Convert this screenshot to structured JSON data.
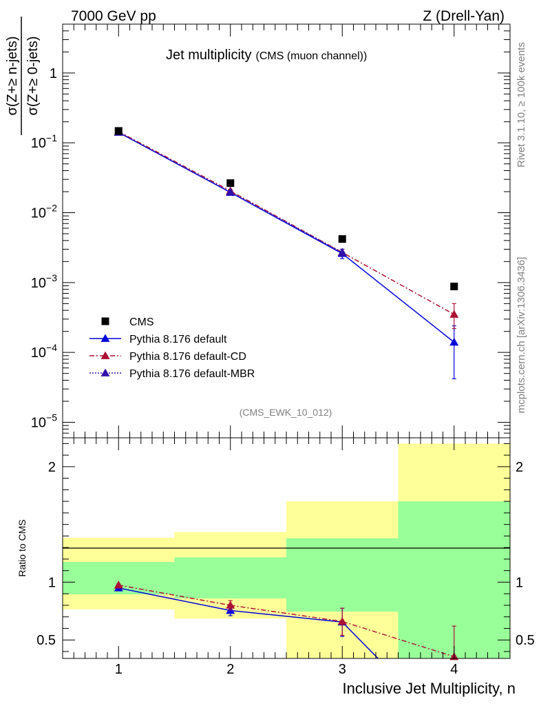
{
  "header": {
    "left": "7000 GeV pp",
    "right": "Z (Drell-Yan)"
  },
  "side_text": {
    "rivet": "Rivet 3.1.10, ≥ 100k events",
    "mcplots": "mcplots.cern.ch [arXiv:1306.3436]"
  },
  "colors": {
    "cms": "#000000",
    "pythia_default": "#0000dd",
    "pythia_cd": "#aa1133",
    "pythia_mbr": "#3311aa",
    "band_outer": "#ffff99",
    "band_inner": "#99ff99"
  },
  "chart_data": [
    {
      "type": "scatter",
      "panel": "main",
      "title": "Jet multiplicity",
      "subtitle": "(CMS (muon channel))",
      "ylabel_num": "σ(Z+≥ n-jets)",
      "ylabel_den": "σ(Z+≥ 0-jets)",
      "watermark": "(CMS_EWK_10_012)",
      "yscale": "log",
      "xlim": [
        0.5,
        4.5
      ],
      "ylim": [
        6e-06,
        5
      ],
      "yticks": [
        {
          "value": 1e-05,
          "base": "10",
          "exp": "−5"
        },
        {
          "value": 0.0001,
          "base": "10",
          "exp": "−4"
        },
        {
          "value": 0.001,
          "base": "10",
          "exp": "−3"
        },
        {
          "value": 0.01,
          "base": "10",
          "exp": "−2"
        },
        {
          "value": 0.1,
          "base": "10",
          "exp": "−1"
        },
        {
          "value": 1,
          "base": "1",
          "exp": ""
        }
      ],
      "legend_position": "lower-left",
      "series": [
        {
          "name": "CMS",
          "style": "data",
          "x": [
            1,
            2,
            3,
            4
          ],
          "y": [
            0.148,
            0.0265,
            0.0042,
            0.00088
          ]
        },
        {
          "name": "Pythia 8.176 default",
          "style": "solid",
          "x": [
            1,
            2,
            3,
            4
          ],
          "y": [
            0.141,
            0.0195,
            0.0026,
            0.00014
          ],
          "err_lo": [
            0.139,
            0.0185,
            0.0022,
            4.2e-05
          ],
          "err_hi": [
            0.143,
            0.0205,
            0.003,
            0.00024
          ]
        },
        {
          "name": "Pythia 8.176 default-CD",
          "style": "dashdot",
          "x": [
            1,
            2,
            3,
            4
          ],
          "y": [
            0.145,
            0.0205,
            0.0027,
            0.00035
          ],
          "err_lo": [
            0.143,
            0.0195,
            0.0024,
            0.00022
          ],
          "err_hi": [
            0.147,
            0.0215,
            0.003,
            0.0005
          ]
        },
        {
          "name": "Pythia 8.176 default-MBR",
          "style": "dotted",
          "x": [
            1,
            2,
            3
          ],
          "y": [
            0.142,
            0.0198,
            0.0027
          ],
          "err_lo": [
            0.14,
            0.0188,
            0.0024
          ],
          "err_hi": [
            0.144,
            0.0208,
            0.003
          ]
        }
      ]
    },
    {
      "type": "line",
      "panel": "ratio",
      "ylabel": "Ratio to CMS",
      "xlabel": "Inclusive Jet Multiplicity, n",
      "xlim": [
        0.5,
        4.5
      ],
      "ylim": [
        0.34,
        2.25
      ],
      "xticks": [
        1,
        2,
        3,
        4
      ],
      "yticks": [
        0.5,
        1,
        2
      ],
      "bands": [
        {
          "x0": 0.5,
          "x1": 1.5,
          "outer": [
            0.765,
            1.385
          ],
          "inner": [
            0.895,
            1.175
          ]
        },
        {
          "x0": 1.5,
          "x1": 2.5,
          "outer": [
            0.685,
            1.435
          ],
          "inner": [
            0.86,
            1.215
          ]
        },
        {
          "x0": 2.5,
          "x1": 3.5,
          "outer": [
            0.34,
            1.7
          ],
          "inner": [
            0.745,
            1.38
          ]
        },
        {
          "x0": 3.5,
          "x1": 4.5,
          "outer": [
            0.34,
            2.2
          ],
          "inner": [
            0.34,
            1.7
          ]
        }
      ],
      "series": [
        {
          "name": "Pythia 8.176 default",
          "style": "solid",
          "x": [
            1,
            2,
            3,
            3.32
          ],
          "y": [
            0.95,
            0.755,
            0.655,
            0.34
          ],
          "markers": [
            1,
            2,
            3
          ],
          "err_lo": [
            0.94,
            0.71,
            0.53
          ],
          "err_hi": [
            0.96,
            0.8,
            0.775
          ]
        },
        {
          "name": "Pythia 8.176 default-CD",
          "style": "dashdot",
          "x": [
            1,
            2,
            3,
            4
          ],
          "y": [
            0.975,
            0.8,
            0.66,
            0.355
          ],
          "markers": [
            1,
            2,
            3,
            4
          ],
          "err_lo": [
            0.965,
            0.76,
            0.54,
            0.34
          ],
          "err_hi": [
            0.985,
            0.84,
            0.775,
            0.62
          ]
        }
      ]
    }
  ]
}
